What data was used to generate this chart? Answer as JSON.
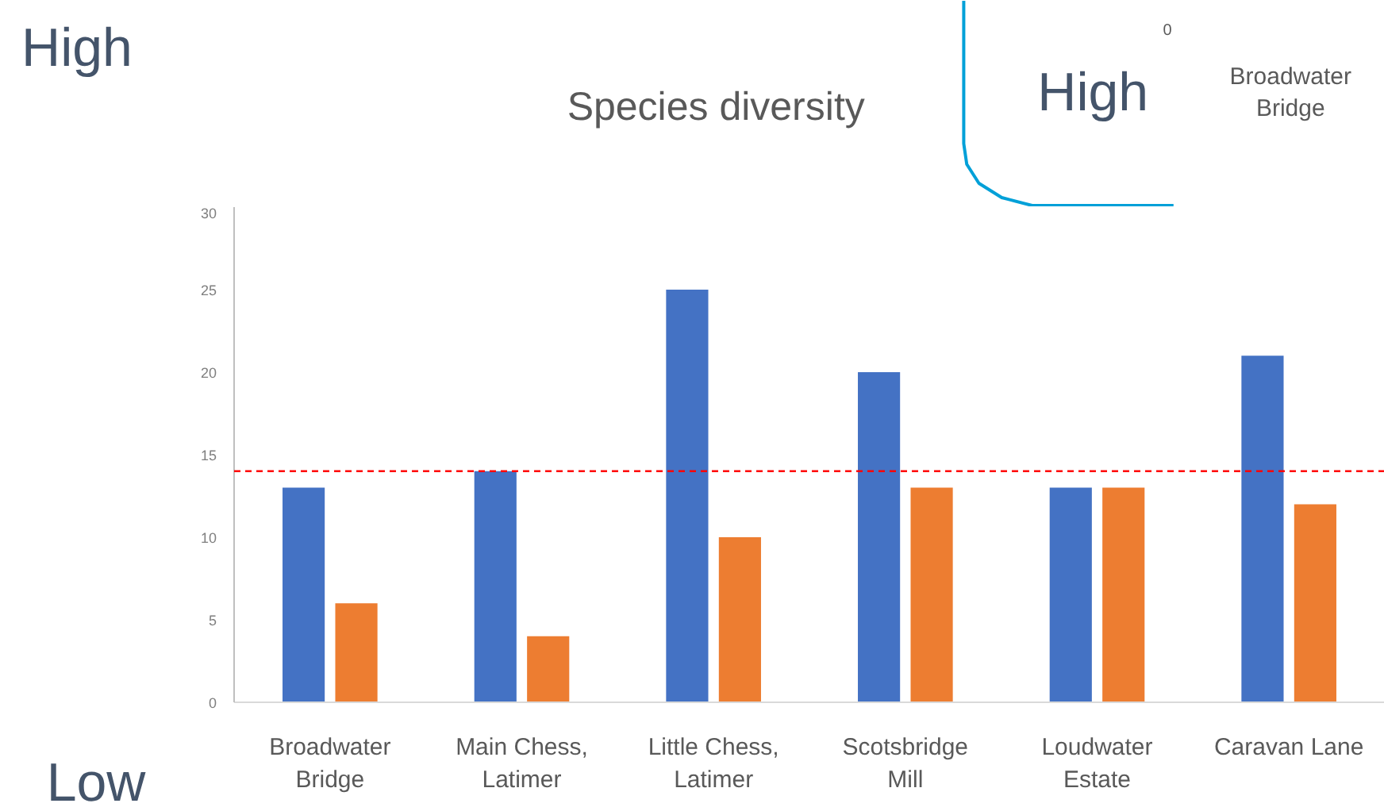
{
  "chart_data": {
    "type": "bar",
    "title": "Species diversity",
    "categories": [
      "Broadwater\nBridge",
      "Main Chess,\nLatimer",
      "Little Chess,\nLatimer",
      "Scotsbridge\nMill",
      "Loudwater\nEstate",
      "Caravan Lane"
    ],
    "series": [
      {
        "color": "#4472c4",
        "values": [
          13,
          14,
          25,
          20,
          13,
          21
        ]
      },
      {
        "color": "#ed7d31",
        "values": [
          6,
          4,
          10,
          13,
          13,
          12
        ]
      }
    ],
    "ylim": [
      0,
      30
    ],
    "yticks": [
      0,
      5,
      10,
      15,
      20,
      25,
      30
    ],
    "ref_lines": [
      {
        "axis": "y",
        "value": 14,
        "color": "#ff0000",
        "line_style": "dashed"
      }
    ],
    "annotations": [
      "High",
      "Low",
      "High",
      "0",
      "Broadwater\nBridge"
    ],
    "grid": false
  }
}
